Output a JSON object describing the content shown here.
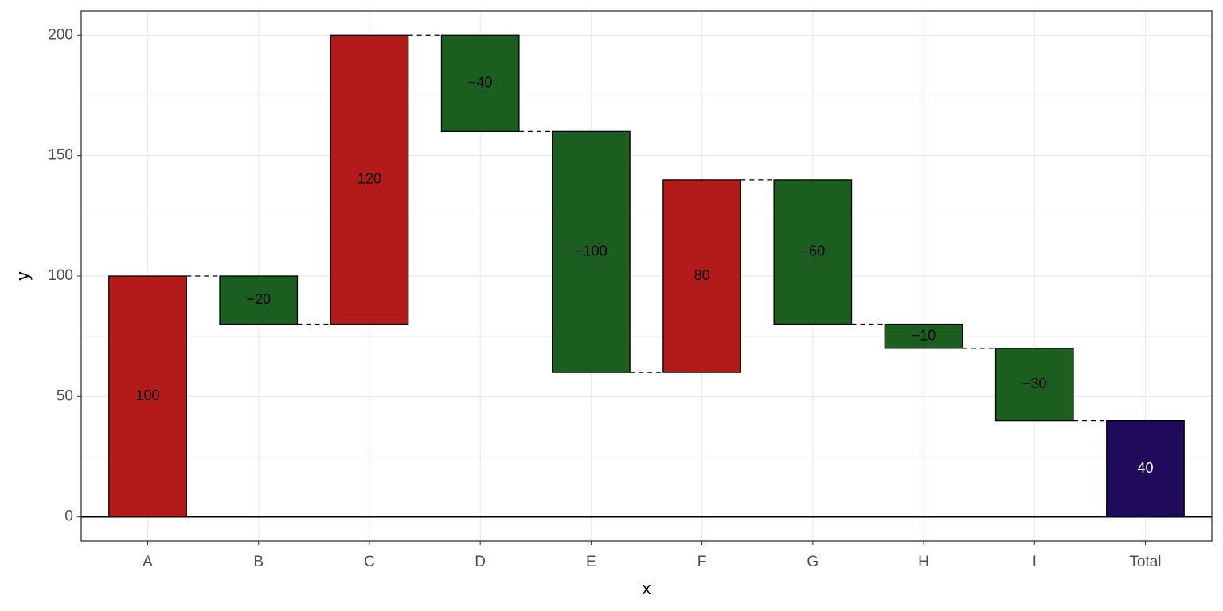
{
  "chart_data": {
    "type": "waterfall",
    "x_label": "x",
    "y_label": "y",
    "categories": [
      "A",
      "B",
      "C",
      "D",
      "E",
      "F",
      "G",
      "H",
      "I",
      "Total"
    ],
    "values": [
      100,
      -20,
      120,
      -40,
      -100,
      80,
      -60,
      -10,
      -30,
      40
    ],
    "value_labels": [
      "100",
      "−20",
      "120",
      "−40",
      "−100",
      "80",
      "−60",
      "−10",
      "−30",
      "40"
    ],
    "colors": [
      "#b31b1b",
      "#1b5e20",
      "#b31b1b",
      "#1b5e20",
      "#1b5e20",
      "#b31b1b",
      "#1b5e20",
      "#1b5e20",
      "#1b5e20",
      "#1f0a5c"
    ],
    "ylim": [
      -10,
      210
    ],
    "yticks": [
      0,
      50,
      100,
      150,
      200
    ],
    "grid": true
  }
}
